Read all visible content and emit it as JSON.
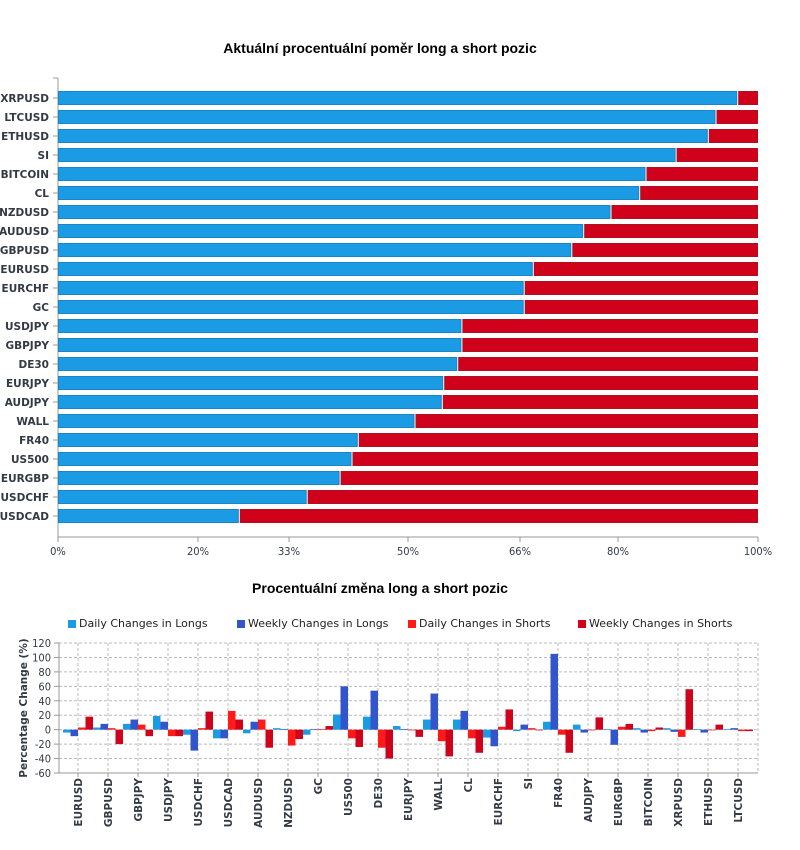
{
  "colors": {
    "long": "#1b9be3",
    "short": "#d0021b",
    "daily_long": "#1b9be3",
    "weekly_long": "#3355cc",
    "daily_short": "#ff1a1a",
    "weekly_short": "#d0021b",
    "axis": "#999999",
    "grid": "#bbbbbb"
  },
  "chart_data": [
    {
      "type": "bar",
      "orientation": "horizontal",
      "stacked": true,
      "title": "Aktuální procentuální poměr long a short pozic",
      "xlabel": "",
      "ylabel": "",
      "xlim": [
        0,
        100
      ],
      "x_ticks": [
        0,
        20,
        33,
        50,
        66,
        80,
        100
      ],
      "x_tick_labels": [
        "0%",
        "20%",
        "33%",
        "50%",
        "66%",
        "80%",
        "100%"
      ],
      "categories": [
        "XRPUSD",
        "LTCUSD",
        "ETHUSD",
        "SI",
        "BITCOIN",
        "CL",
        "NZDUSD",
        "AUDUSD",
        "GBPUSD",
        "EURUSD",
        "EURCHF",
        "GC",
        "USDJPY",
        "GBPJPY",
        "DE30",
        "EURJPY",
        "AUDJPY",
        "WALL",
        "FR40",
        "US500",
        "EURGBP",
        "USDCHF",
        "USDCAD"
      ],
      "series": [
        {
          "name": "Long",
          "values": [
            97.1,
            94.0,
            92.9,
            88.3,
            84.0,
            83.1,
            79.0,
            75.1,
            73.4,
            67.9,
            66.6,
            66.6,
            57.7,
            57.7,
            57.1,
            55.1,
            54.9,
            51.0,
            42.9,
            42.0,
            40.3,
            35.6,
            25.9
          ]
        },
        {
          "name": "Short",
          "values": [
            2.9,
            6.0,
            7.1,
            11.7,
            16.0,
            16.9,
            21.0,
            24.9,
            26.6,
            32.1,
            33.4,
            33.4,
            42.3,
            42.3,
            42.9,
            44.9,
            45.1,
            49.0,
            57.1,
            58.0,
            59.7,
            64.4,
            74.1
          ]
        }
      ],
      "grid": false,
      "legend": "none"
    },
    {
      "type": "bar",
      "orientation": "vertical",
      "stacked": false,
      "title": "Procentuální změna long a short pozic",
      "xlabel": "",
      "ylabel": "Percentage Change (%)",
      "ylim": [
        -60,
        120
      ],
      "y_ticks": [
        -60,
        -40,
        -20,
        0,
        20,
        40,
        60,
        80,
        100,
        120
      ],
      "categories": [
        "EURUSD",
        "GBPUSD",
        "GBPJPY",
        "USDJPY",
        "USDCHF",
        "USDCAD",
        "AUDUSD",
        "NZDUSD",
        "GC",
        "US500",
        "DE30",
        "EURJPY",
        "WALL",
        "CL",
        "EURCHF",
        "SI",
        "FR40",
        "AUDJPY",
        "EURGBP",
        "BITCOIN",
        "XRPUSD",
        "ETHUSD",
        "LTCUSD"
      ],
      "series": [
        {
          "name": "Daily Changes in Longs",
          "values": [
            -4,
            3,
            8,
            19,
            -7,
            -12,
            -5,
            0,
            -7,
            21,
            18,
            5,
            14,
            14,
            -11,
            -2,
            11,
            7,
            1,
            0,
            0,
            1,
            1
          ]
        },
        {
          "name": "Weekly Changes in Longs",
          "values": [
            -9,
            8,
            14,
            11,
            -29,
            -12,
            11,
            1,
            1,
            60,
            54,
            1,
            50,
            26,
            -23,
            7,
            105,
            -4,
            -21,
            -4,
            -3,
            -4,
            0
          ]
        },
        {
          "name": "Daily Changes in Shorts",
          "values": [
            3,
            0,
            7,
            -9,
            0,
            26,
            14,
            -22,
            1,
            -12,
            -25,
            -1,
            -16,
            -12,
            4,
            0,
            -7,
            -1,
            4,
            -2,
            -10,
            -1,
            -2
          ]
        },
        {
          "name": "Weekly Changes in Shorts",
          "values": [
            18,
            -20,
            -9,
            -9,
            25,
            14,
            -25,
            -13,
            5,
            -24,
            -40,
            -10,
            -37,
            -32,
            28,
            -1,
            -32,
            17,
            8,
            3,
            56,
            7,
            -2
          ]
        }
      ],
      "grid": true,
      "legend": "top"
    }
  ]
}
